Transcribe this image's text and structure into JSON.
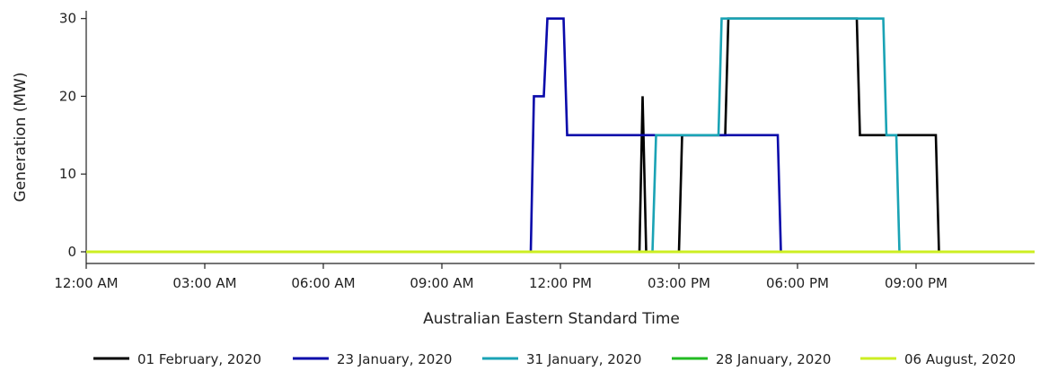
{
  "chart_data": {
    "type": "line",
    "xlabel": "Australian Eastern Standard Time",
    "ylabel": "Generation (MW)",
    "xlim": [
      0,
      24
    ],
    "ylim": [
      -1.5,
      31
    ],
    "x_unit": "hours since 12:00 AM",
    "x_ticks": [
      {
        "value": 0,
        "label": "12:00 AM"
      },
      {
        "value": 3,
        "label": "03:00 AM"
      },
      {
        "value": 6,
        "label": "06:00 AM"
      },
      {
        "value": 9,
        "label": "09:00 AM"
      },
      {
        "value": 12,
        "label": "12:00 PM"
      },
      {
        "value": 15,
        "label": "03:00 PM"
      },
      {
        "value": 18,
        "label": "06:00 PM"
      },
      {
        "value": 21,
        "label": "09:00 PM"
      }
    ],
    "y_ticks": [
      0,
      10,
      20,
      30
    ],
    "grid": false,
    "legend_position": "bottom",
    "series": [
      {
        "name": "01 February, 2020",
        "color": "#000000",
        "points": [
          [
            0,
            0
          ],
          [
            14.0,
            0
          ],
          [
            14.08,
            20
          ],
          [
            14.17,
            0
          ],
          [
            15.0,
            0
          ],
          [
            15.08,
            15
          ],
          [
            16.17,
            15
          ],
          [
            16.25,
            30
          ],
          [
            19.5,
            30
          ],
          [
            19.58,
            15
          ],
          [
            21.5,
            15
          ],
          [
            21.58,
            0
          ],
          [
            24,
            0
          ]
        ]
      },
      {
        "name": "23 January, 2020",
        "color": "#0a0aaa",
        "points": [
          [
            0,
            0
          ],
          [
            11.25,
            0
          ],
          [
            11.33,
            20
          ],
          [
            11.58,
            20
          ],
          [
            11.67,
            30
          ],
          [
            12.08,
            30
          ],
          [
            12.17,
            15
          ],
          [
            16.17,
            15
          ],
          [
            17.5,
            15
          ],
          [
            17.58,
            0
          ],
          [
            24,
            0
          ]
        ]
      },
      {
        "name": "31 January, 2020",
        "color": "#1aa3b5",
        "points": [
          [
            0,
            0
          ],
          [
            14.33,
            0
          ],
          [
            14.42,
            15
          ],
          [
            16.0,
            15
          ],
          [
            16.08,
            30
          ],
          [
            20.17,
            30
          ],
          [
            20.25,
            15
          ],
          [
            20.5,
            15
          ],
          [
            20.58,
            0
          ],
          [
            24,
            0
          ]
        ]
      },
      {
        "name": "28 January, 2020",
        "color": "#22bb22",
        "points": [
          [
            0,
            0
          ],
          [
            24,
            0
          ]
        ]
      },
      {
        "name": "06 August, 2020",
        "color": "#ccee22",
        "points": [
          [
            0,
            0
          ],
          [
            24,
            0
          ]
        ]
      }
    ]
  }
}
